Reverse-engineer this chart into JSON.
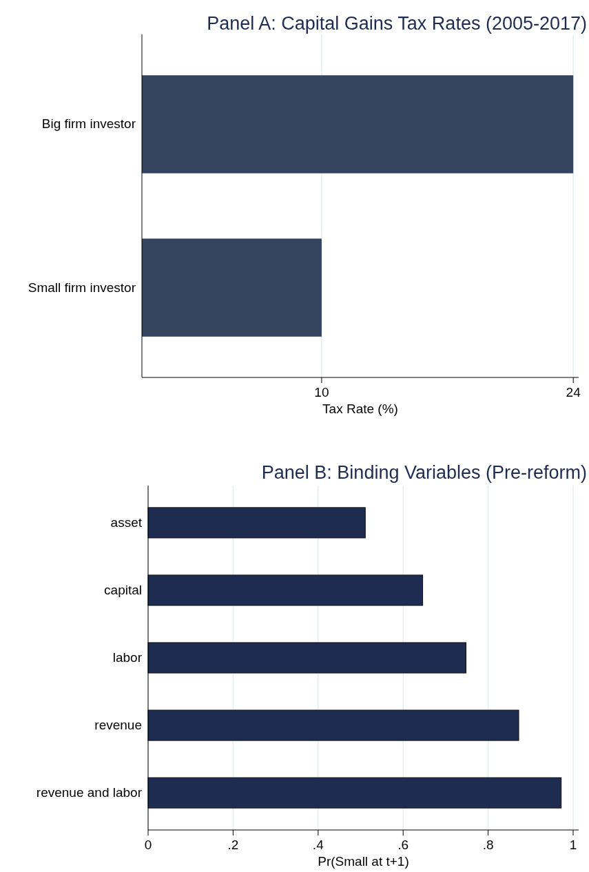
{
  "chart_data": [
    {
      "type": "bar",
      "orientation": "horizontal",
      "title": "Panel A: Capital Gains Tax Rates (2005-2017)",
      "xlabel": "Tax Rate (%)",
      "categories": [
        "Big firm investor",
        "Small firm investor"
      ],
      "values": [
        24,
        10
      ],
      "color": "#34435f",
      "xlim": [
        0,
        24.3
      ],
      "xticks": [
        10,
        24
      ],
      "grid": "x"
    },
    {
      "type": "bar",
      "orientation": "horizontal",
      "title": "Panel B: Binding Variables (Pre-reform)",
      "xlabel": "Pr(Small at t+1)",
      "categories": [
        "asset",
        "capital",
        "labor",
        "revenue",
        "revenue and labor"
      ],
      "values": [
        0.511,
        0.646,
        0.748,
        0.872,
        0.972
      ],
      "color": "#1f2c52",
      "xlim": [
        0,
        1.013
      ],
      "xticks": [
        {
          "value": 0,
          "label": "0"
        },
        {
          "value": 0.2,
          "label": ".2"
        },
        {
          "value": 0.4,
          "label": ".4"
        },
        {
          "value": 0.6,
          "label": ".6"
        },
        {
          "value": 0.8,
          "label": ".8"
        },
        {
          "value": 1,
          "label": "1"
        }
      ],
      "grid": "x"
    }
  ]
}
